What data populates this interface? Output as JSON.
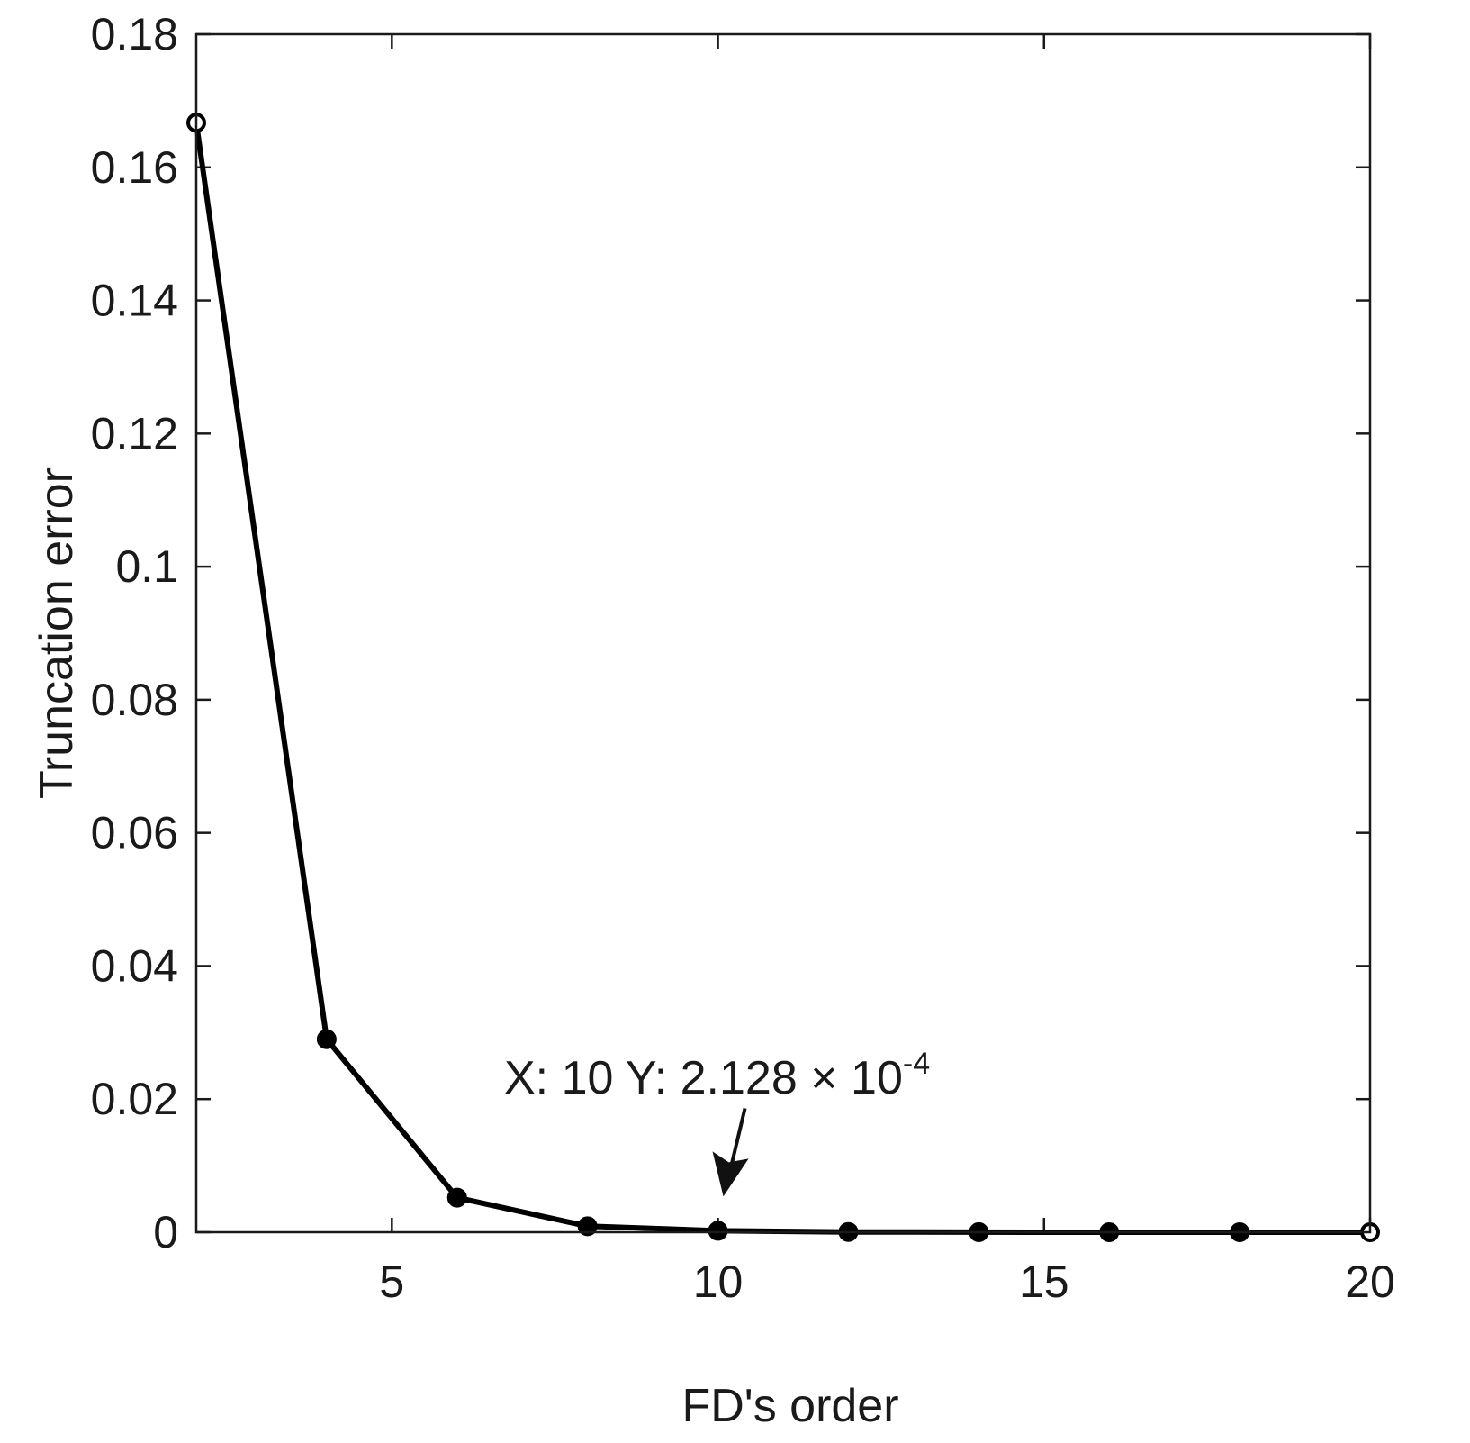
{
  "chart_data": {
    "type": "line",
    "title": "",
    "xlabel": "FD's order",
    "ylabel": "Truncation error",
    "xlim": [
      2,
      20
    ],
    "ylim": [
      0,
      0.18
    ],
    "xticks": [
      5,
      10,
      15,
      20
    ],
    "yticks": [
      0,
      0.02,
      0.04,
      0.06,
      0.08,
      0.1,
      0.12,
      0.14,
      0.16,
      0.18
    ],
    "xtick_labels": [
      "5",
      "10",
      "15",
      "20"
    ],
    "ytick_labels": [
      "0",
      "0.02",
      "0.04",
      "0.06",
      "0.08",
      "0.1",
      "0.12",
      "0.14",
      "0.16",
      "0.18"
    ],
    "grid": false,
    "legend": false,
    "series": [
      {
        "color": "#000000",
        "x": [
          2,
          4,
          6,
          8,
          10,
          12,
          14,
          16,
          18,
          20
        ],
        "y": [
          0.1667,
          0.029,
          0.0052,
          0.0009,
          0.0002128,
          4e-05,
          1e-05,
          2e-06,
          5e-07,
          1e-07
        ]
      }
    ],
    "annotation": {
      "text": "X: 10 Y: 2.128 × 10",
      "exponent": "-4",
      "x": 10,
      "y": 0.0002128
    }
  }
}
